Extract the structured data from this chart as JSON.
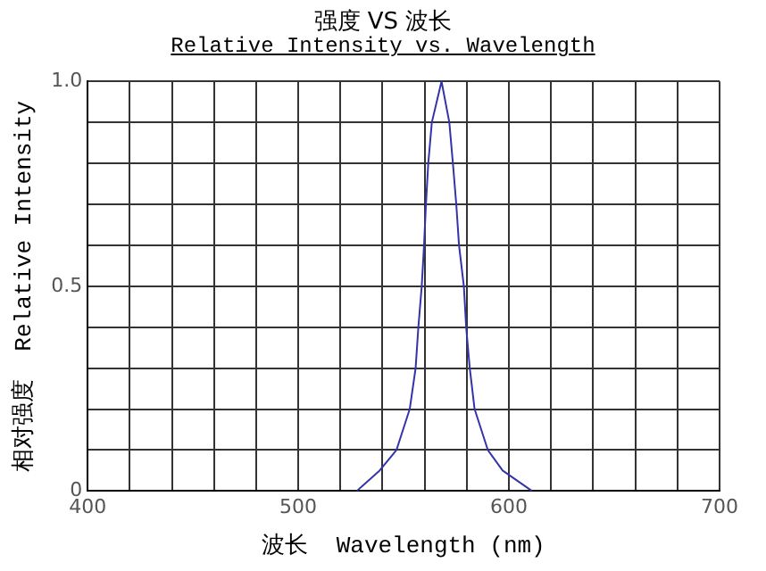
{
  "chart_data": {
    "type": "line",
    "title": "强度 VS 波长",
    "subtitle": "Relative Intensity vs. Wavelength",
    "xlabel": "波长  Wavelength (nm)",
    "ylabel": "相对强度  Relative Intensity",
    "x": [
      527.7,
      538.6,
      546.6,
      552.9,
      555.7,
      557,
      558.6,
      559.7,
      560.6,
      561.7,
      563.4,
      568,
      571.7,
      573.4,
      575,
      576.3,
      578.6,
      579.7,
      581.4,
      583.7,
      590,
      597,
      611
    ],
    "series": [
      {
        "color": "#3333aa",
        "values": [
          0,
          0.05,
          0.1,
          0.2,
          0.3,
          0.4,
          0.5,
          0.6,
          0.7,
          0.8,
          0.9,
          1,
          0.9,
          0.8,
          0.7,
          0.6,
          0.5,
          0.4,
          0.3,
          0.2,
          0.1,
          0.05,
          0
        ]
      }
    ],
    "xlim": [
      400,
      700
    ],
    "ylim": [
      0,
      1
    ],
    "xticks": [
      400,
      {
        "value": 420,
        "label": null
      },
      {
        "value": 440,
        "label": null
      },
      {
        "value": 460,
        "label": null
      },
      {
        "value": 480,
        "label": null
      },
      500,
      {
        "value": 520,
        "label": null
      },
      {
        "value": 540,
        "label": null
      },
      {
        "value": 560,
        "label": null
      },
      {
        "value": 580,
        "label": null
      },
      600,
      {
        "value": 620,
        "label": null
      },
      {
        "value": 640,
        "label": null
      },
      {
        "value": 660,
        "label": null
      },
      {
        "value": 680,
        "label": null
      },
      700
    ],
    "yticks": [
      0,
      {
        "value": 0.1,
        "label": null
      },
      {
        "value": 0.2,
        "label": null
      },
      {
        "value": 0.3,
        "label": null
      },
      {
        "value": 0.4,
        "label": null
      },
      {
        "value": 0.5,
        "label": "0.5"
      },
      {
        "value": 0.6,
        "label": null
      },
      {
        "value": 0.7,
        "label": null
      },
      {
        "value": 0.8,
        "label": null
      },
      {
        "value": 0.9,
        "label": null
      },
      {
        "value": 1,
        "label": "1.0"
      }
    ],
    "grid": true,
    "marker": "none"
  }
}
